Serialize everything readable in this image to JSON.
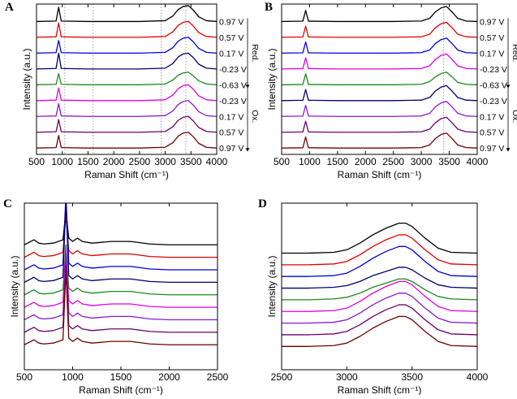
{
  "chart_data": [
    {
      "type": "line",
      "title": "A",
      "x_label": "Raman Shift (cm⁻¹)",
      "y_label": "Intensity (a.u.)",
      "x": [
        500,
        880,
        930,
        980,
        1500,
        2500,
        3000,
        3150,
        3250,
        3350,
        3450,
        3550,
        3650,
        3800,
        4000
      ],
      "xlim": [
        500,
        4000
      ],
      "xticks": [
        500,
        1000,
        1500,
        2000,
        2500,
        3000,
        3500,
        4000
      ],
      "ylim": [
        0,
        9.5
      ],
      "reference_lines": [
        1050,
        1600,
        2920,
        3400
      ],
      "annotations": [
        "Red.",
        "Ox."
      ],
      "series": [
        {
          "name": "0.97 V",
          "color": "#000000",
          "values": [
            8.4,
            8.43,
            9.3,
            8.43,
            8.4,
            8.4,
            8.45,
            8.75,
            9.15,
            9.35,
            9.4,
            9.1,
            8.7,
            8.45,
            8.4
          ]
        },
        {
          "name": "0.57 V",
          "color": "#e00000",
          "values": [
            7.4,
            7.43,
            8.3,
            7.43,
            7.4,
            7.4,
            7.45,
            7.75,
            8.15,
            8.35,
            8.4,
            8.1,
            7.7,
            7.45,
            7.4
          ]
        },
        {
          "name": "0.17 V",
          "color": "#0000e0",
          "values": [
            6.4,
            6.43,
            7.2,
            6.43,
            6.4,
            6.4,
            6.45,
            6.75,
            7.15,
            7.35,
            7.4,
            7.1,
            6.7,
            6.45,
            6.4
          ]
        },
        {
          "name": "-0.23 V",
          "color": "#00006e",
          "values": [
            5.4,
            5.43,
            6.4,
            5.43,
            5.4,
            5.4,
            5.45,
            5.75,
            6.15,
            6.35,
            6.4,
            6.1,
            5.7,
            5.45,
            5.4
          ]
        },
        {
          "name": "-0.63 V",
          "color": "#1a8a1a",
          "values": [
            4.4,
            4.43,
            5.1,
            4.43,
            4.4,
            4.4,
            4.45,
            4.7,
            5.0,
            5.15,
            5.2,
            4.95,
            4.65,
            4.45,
            4.4
          ]
        },
        {
          "name": "-0.23 V",
          "color": "#e000e0",
          "values": [
            3.4,
            3.43,
            4.2,
            3.43,
            3.4,
            3.4,
            3.45,
            3.75,
            4.15,
            4.35,
            4.4,
            4.1,
            3.7,
            3.45,
            3.4
          ]
        },
        {
          "name": "0.17 V",
          "color": "#8a1ad0",
          "values": [
            2.4,
            2.43,
            3.2,
            2.43,
            2.4,
            2.4,
            2.45,
            2.75,
            3.15,
            3.35,
            3.4,
            3.1,
            2.7,
            2.45,
            2.4
          ]
        },
        {
          "name": "0.57 V",
          "color": "#6a006a",
          "values": [
            1.4,
            1.43,
            2.2,
            1.43,
            1.4,
            1.4,
            1.45,
            1.75,
            2.15,
            2.35,
            2.4,
            2.1,
            1.7,
            1.45,
            1.4
          ]
        },
        {
          "name": "0.97 V",
          "color": "#700000",
          "values": [
            0.4,
            0.43,
            1.2,
            0.43,
            0.4,
            0.4,
            0.45,
            0.75,
            1.15,
            1.35,
            1.4,
            1.1,
            0.7,
            0.45,
            0.4
          ]
        }
      ]
    },
    {
      "type": "line",
      "title": "B",
      "x_label": "Raman Shift (cm⁻¹)",
      "y_label": "Intensity (a.u.)",
      "x": [
        500,
        880,
        930,
        980,
        1500,
        2500,
        3000,
        3150,
        3250,
        3350,
        3450,
        3550,
        3650,
        3800,
        4000
      ],
      "xlim": [
        500,
        4000
      ],
      "xticks": [
        500,
        1000,
        1500,
        2000,
        2500,
        3000,
        3500,
        4000
      ],
      "ylim": [
        0,
        9.5
      ],
      "reference_lines": [
        3400
      ],
      "annotations": [
        "Red.",
        "Ox."
      ],
      "series": [
        {
          "name": "0.97 V",
          "color": "#000000",
          "values": [
            8.4,
            8.42,
            9.1,
            8.42,
            8.4,
            8.4,
            8.43,
            8.6,
            9.0,
            9.25,
            9.35,
            9.0,
            8.6,
            8.43,
            8.4
          ]
        },
        {
          "name": "0.57 V",
          "color": "#e00000",
          "values": [
            7.4,
            7.42,
            8.1,
            7.42,
            7.4,
            7.4,
            7.43,
            7.6,
            8.0,
            8.25,
            8.35,
            8.0,
            7.6,
            7.43,
            7.4
          ]
        },
        {
          "name": "0.17 V",
          "color": "#0000e0",
          "values": [
            6.4,
            6.42,
            7.1,
            6.42,
            6.4,
            6.4,
            6.43,
            6.6,
            7.0,
            7.25,
            7.35,
            7.0,
            6.6,
            6.43,
            6.4
          ]
        },
        {
          "name": "-0.23 V",
          "color": "#e000e0",
          "values": [
            5.4,
            5.42,
            6.1,
            5.42,
            5.4,
            5.4,
            5.43,
            5.6,
            6.0,
            6.25,
            6.35,
            6.0,
            5.6,
            5.43,
            5.4
          ]
        },
        {
          "name": "-0.63 V",
          "color": "#1a8a1a",
          "values": [
            4.4,
            4.42,
            5.1,
            4.42,
            4.4,
            4.4,
            4.43,
            4.6,
            4.9,
            5.1,
            5.2,
            4.9,
            4.55,
            4.43,
            4.4
          ]
        },
        {
          "name": "-0.23 V",
          "color": "#00006e",
          "values": [
            3.4,
            3.42,
            4.1,
            3.42,
            3.4,
            3.4,
            3.43,
            3.6,
            4.0,
            4.25,
            4.35,
            4.0,
            3.6,
            3.43,
            3.4
          ]
        },
        {
          "name": "0.17 V",
          "color": "#8a1ad0",
          "values": [
            2.4,
            2.42,
            3.1,
            2.42,
            2.4,
            2.4,
            2.43,
            2.6,
            3.0,
            3.25,
            3.35,
            3.0,
            2.6,
            2.43,
            2.4
          ]
        },
        {
          "name": "0.57 V",
          "color": "#6a006a",
          "values": [
            1.4,
            1.42,
            2.1,
            1.42,
            1.4,
            1.4,
            1.43,
            1.6,
            2.0,
            2.25,
            2.35,
            2.0,
            1.6,
            1.43,
            1.4
          ]
        },
        {
          "name": "0.97 V",
          "color": "#700000",
          "values": [
            0.4,
            0.42,
            1.1,
            0.42,
            0.4,
            0.4,
            0.43,
            0.6,
            1.0,
            1.25,
            1.35,
            1.0,
            0.6,
            0.43,
            0.4
          ]
        }
      ]
    },
    {
      "type": "line",
      "title": "C",
      "x_label": "Raman Shift (cm⁻¹)",
      "y_label": "Intensity (a.u.)",
      "x": [
        500,
        600,
        650,
        700,
        800,
        900,
        930,
        960,
        1000,
        1050,
        1100,
        1200,
        1400,
        1600,
        1800,
        2000,
        2200,
        2500
      ],
      "xlim": [
        500,
        2500
      ],
      "xticks": [
        500,
        1000,
        1500,
        2000,
        2500
      ],
      "ylim": [
        0,
        10
      ],
      "series": [
        {
          "color": "#000000",
          "values": [
            7.5,
            7.8,
            7.6,
            7.55,
            7.6,
            7.8,
            9.5,
            7.9,
            7.7,
            7.9,
            7.7,
            7.6,
            7.7,
            7.7,
            7.55,
            7.5,
            7.5,
            7.5
          ]
        },
        {
          "color": "#e00000",
          "values": [
            6.75,
            7.05,
            6.85,
            6.8,
            6.85,
            7.05,
            9.25,
            7.15,
            6.95,
            7.15,
            6.95,
            6.85,
            6.95,
            6.95,
            6.8,
            6.75,
            6.75,
            6.75
          ]
        },
        {
          "color": "#0000e0",
          "values": [
            6.0,
            6.3,
            6.1,
            6.05,
            6.1,
            6.3,
            10.5,
            6.4,
            6.2,
            6.4,
            6.2,
            6.1,
            6.2,
            6.2,
            6.05,
            6.0,
            6.0,
            6.0
          ]
        },
        {
          "color": "#00006e",
          "values": [
            5.25,
            5.55,
            5.35,
            5.3,
            5.35,
            5.55,
            10.25,
            5.65,
            5.45,
            5.65,
            5.45,
            5.35,
            5.45,
            5.45,
            5.3,
            5.25,
            5.25,
            5.25
          ]
        },
        {
          "color": "#1a8a1a",
          "values": [
            4.5,
            4.8,
            4.6,
            4.55,
            4.6,
            4.8,
            7.5,
            4.9,
            4.7,
            4.9,
            4.7,
            4.6,
            4.7,
            4.7,
            4.55,
            4.5,
            4.5,
            4.5
          ]
        },
        {
          "color": "#e000e0",
          "values": [
            3.75,
            4.05,
            3.85,
            3.8,
            3.85,
            4.05,
            7.25,
            4.15,
            3.95,
            4.15,
            3.95,
            3.85,
            3.95,
            3.95,
            3.8,
            3.75,
            3.75,
            3.75
          ]
        },
        {
          "color": "#8a1ad0",
          "values": [
            3.0,
            3.3,
            3.1,
            3.05,
            3.1,
            3.3,
            7.0,
            3.4,
            3.2,
            3.4,
            3.2,
            3.1,
            3.2,
            3.2,
            3.05,
            3.0,
            3.0,
            3.0
          ]
        },
        {
          "color": "#6a006a",
          "values": [
            2.25,
            2.55,
            2.35,
            2.3,
            2.35,
            2.55,
            6.25,
            2.65,
            2.45,
            2.65,
            2.45,
            2.35,
            2.45,
            2.45,
            2.3,
            2.25,
            2.25,
            2.25
          ]
        },
        {
          "color": "#700000",
          "values": [
            1.5,
            1.8,
            1.6,
            1.55,
            1.6,
            1.8,
            6.0,
            1.9,
            1.7,
            1.9,
            1.7,
            1.6,
            1.7,
            1.7,
            1.55,
            1.5,
            1.5,
            1.5
          ]
        }
      ]
    },
    {
      "type": "line",
      "title": "D",
      "x_label": "Raman Shift (cm⁻¹)",
      "y_label": "Intensity (a.u.)",
      "x": [
        2500,
        2700,
        2900,
        3000,
        3100,
        3200,
        3300,
        3400,
        3450,
        3500,
        3600,
        3700,
        3800,
        4000
      ],
      "xlim": [
        2500,
        4000
      ],
      "xticks": [
        2500,
        3000,
        3500,
        4000
      ],
      "ylim": [
        0,
        10
      ],
      "series": [
        {
          "color": "#000000",
          "values": [
            7.0,
            7.0,
            7.05,
            7.2,
            7.6,
            8.1,
            8.5,
            8.8,
            8.8,
            8.6,
            7.9,
            7.3,
            7.05,
            7.0
          ]
        },
        {
          "color": "#e00000",
          "values": [
            6.3,
            6.3,
            6.35,
            6.5,
            6.9,
            7.4,
            7.8,
            8.1,
            8.1,
            7.9,
            7.2,
            6.6,
            6.35,
            6.3
          ]
        },
        {
          "color": "#0000e0",
          "values": [
            5.6,
            5.6,
            5.65,
            5.8,
            6.2,
            6.7,
            7.1,
            7.4,
            7.4,
            7.2,
            6.5,
            5.9,
            5.65,
            5.6
          ]
        },
        {
          "color": "#00006e",
          "values": [
            4.9,
            4.9,
            4.95,
            5.05,
            5.3,
            5.65,
            5.9,
            6.15,
            6.15,
            6.0,
            5.5,
            5.1,
            4.95,
            4.9
          ]
        },
        {
          "color": "#1a8a1a",
          "values": [
            4.2,
            4.2,
            4.25,
            4.35,
            4.6,
            4.95,
            5.2,
            5.45,
            5.45,
            5.3,
            4.8,
            4.4,
            4.25,
            4.2
          ]
        },
        {
          "color": "#e000e0",
          "values": [
            3.5,
            3.5,
            3.55,
            3.7,
            4.1,
            4.6,
            5.0,
            5.3,
            5.3,
            5.1,
            4.4,
            3.8,
            3.55,
            3.5
          ]
        },
        {
          "color": "#8a1ad0",
          "values": [
            2.8,
            2.8,
            2.85,
            3.0,
            3.4,
            3.9,
            4.3,
            4.6,
            4.6,
            4.4,
            3.7,
            3.1,
            2.85,
            2.8
          ]
        },
        {
          "color": "#6a006a",
          "values": [
            2.1,
            2.1,
            2.15,
            2.3,
            2.7,
            3.2,
            3.6,
            3.9,
            3.9,
            3.7,
            3.0,
            2.4,
            2.15,
            2.1
          ]
        },
        {
          "color": "#700000",
          "values": [
            1.4,
            1.4,
            1.45,
            1.6,
            2.0,
            2.5,
            2.9,
            3.2,
            3.2,
            3.0,
            2.3,
            1.7,
            1.45,
            1.4
          ]
        }
      ]
    }
  ]
}
